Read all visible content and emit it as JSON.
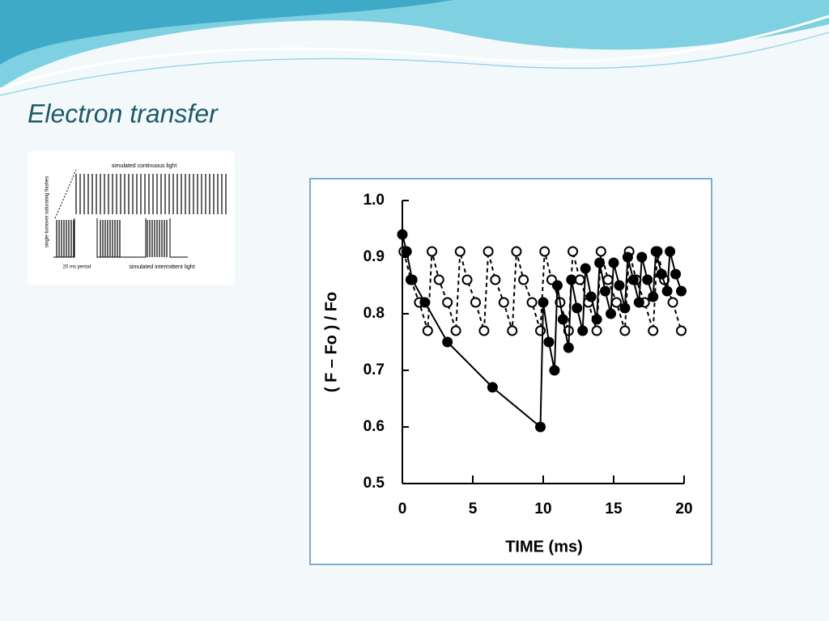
{
  "slide_title": "Electron transfer",
  "diagram": {
    "top_label": "simulated continuous light",
    "side_label": "single-turnover saturating flashes",
    "period_label": "20 ms period",
    "bottom_label": "simulated intermittent light"
  },
  "chart_data": {
    "type": "scatter",
    "x_label": "TIME (ms)",
    "y_label": "( F – Fo ) / Fo",
    "xlim": [
      0,
      20
    ],
    "xticks": [
      0,
      5,
      10,
      15,
      20
    ],
    "ylim": [
      0.5,
      1.0
    ],
    "yticks": [
      {
        "value": 0.5,
        "label": "0.5"
      },
      0.6,
      0.7,
      0.8,
      0.9,
      {
        "value": 1.0,
        "label": "1.0"
      }
    ],
    "series": [
      {
        "color": "#000000",
        "marker": "open",
        "dashed": true,
        "x": [
          0.1,
          0.6,
          1.2,
          1.8,
          2.1,
          2.6,
          3.2,
          3.8,
          4.1,
          4.6,
          5.2,
          5.8,
          6.1,
          6.6,
          7.2,
          7.8,
          8.1,
          8.6,
          9.2,
          9.8,
          10.1,
          10.6,
          11.2,
          11.8,
          12.1,
          12.6,
          13.2,
          13.8,
          14.1,
          14.6,
          15.2,
          15.8,
          16.1,
          16.6,
          17.2,
          17.8,
          18.1,
          18.6,
          19.2,
          19.8
        ],
        "values": [
          0.91,
          0.86,
          0.82,
          0.77,
          0.91,
          0.86,
          0.82,
          0.77,
          0.91,
          0.86,
          0.82,
          0.77,
          0.91,
          0.86,
          0.82,
          0.77,
          0.91,
          0.86,
          0.82,
          0.77,
          0.91,
          0.86,
          0.82,
          0.77,
          0.91,
          0.86,
          0.82,
          0.77,
          0.91,
          0.86,
          0.82,
          0.77,
          0.91,
          0.86,
          0.82,
          0.77,
          0.91,
          0.86,
          0.82,
          0.77
        ]
      },
      {
        "color": "#000000",
        "marker": "filled",
        "dashed": false,
        "x": [
          0,
          0.3,
          0.7,
          1.6,
          3.2,
          6.4,
          9.8,
          10,
          10.4,
          10.8,
          11,
          11.4,
          11.8,
          12,
          12.4,
          12.8,
          13,
          13.4,
          13.8,
          14,
          14.4,
          14.8,
          15,
          15.4,
          15.8,
          16,
          16.4,
          16.8,
          17,
          17.4,
          17.8,
          18,
          18.4,
          18.8,
          19,
          19.4,
          19.8
        ],
        "values": [
          0.94,
          0.91,
          0.86,
          0.82,
          0.75,
          0.67,
          0.6,
          0.82,
          0.75,
          0.7,
          0.85,
          0.79,
          0.74,
          0.86,
          0.81,
          0.77,
          0.88,
          0.83,
          0.79,
          0.89,
          0.84,
          0.8,
          0.89,
          0.85,
          0.81,
          0.9,
          0.86,
          0.82,
          0.9,
          0.86,
          0.83,
          0.91,
          0.87,
          0.84,
          0.91,
          0.87,
          0.84
        ]
      }
    ]
  }
}
